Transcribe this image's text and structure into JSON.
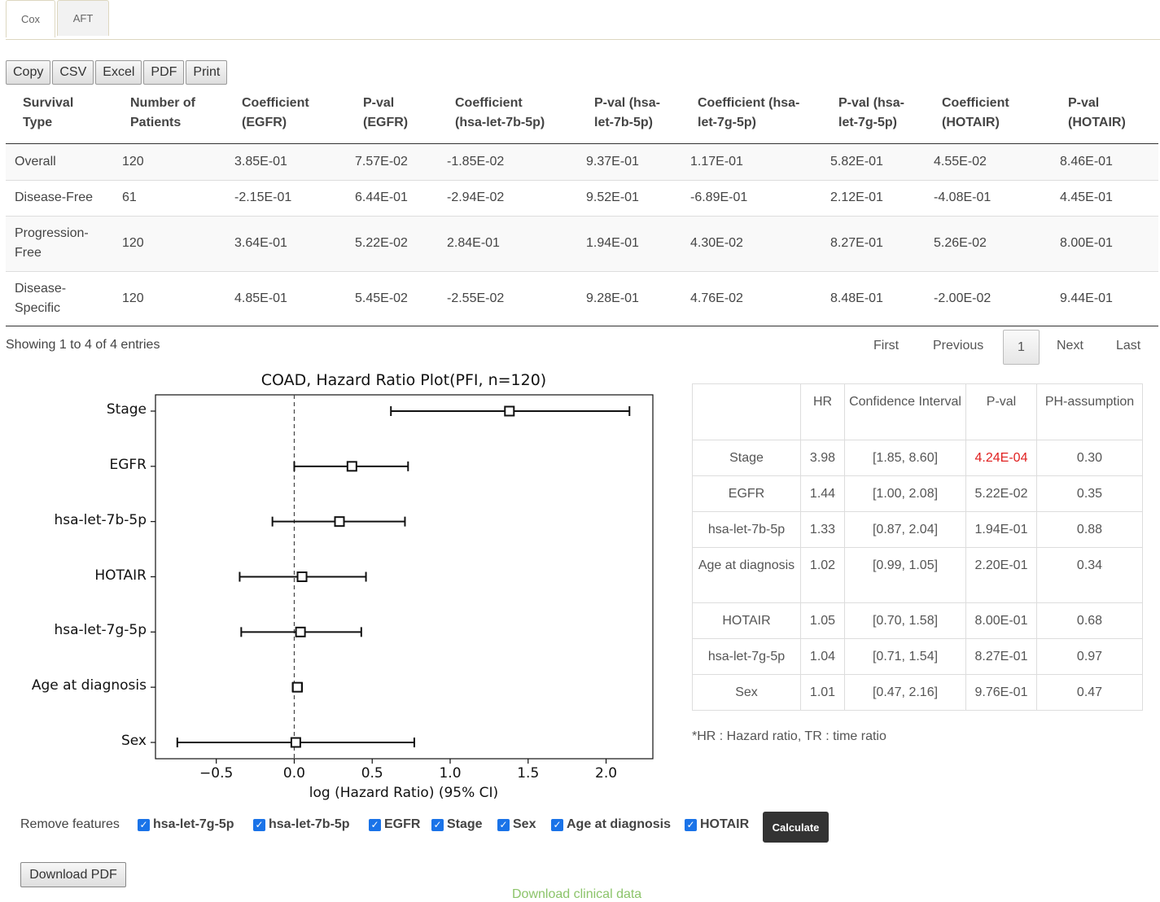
{
  "tabs": [
    {
      "label": "Cox"
    },
    {
      "label": "AFT"
    }
  ],
  "export_buttons": [
    "Copy",
    "CSV",
    "Excel",
    "PDF",
    "Print"
  ],
  "table": {
    "headers": [
      [
        "Survival",
        "Type"
      ],
      [
        "Number of",
        "Patients"
      ],
      [
        "Coefficient",
        "(EGFR)"
      ],
      [
        "P-val",
        "(EGFR)"
      ],
      [
        "Coefficient",
        "(hsa-let-7b-5p)"
      ],
      [
        "P-val (hsa-",
        "let-7b-5p)"
      ],
      [
        "Coefficient (hsa-",
        "let-7g-5p)"
      ],
      [
        "P-val (hsa-",
        "let-7g-5p)"
      ],
      [
        "Coefficient",
        "(HOTAIR)"
      ],
      [
        "P-val",
        "(HOTAIR)"
      ]
    ],
    "rows": [
      [
        [
          "Overall"
        ],
        "120",
        "3.85E-01",
        "7.57E-02",
        "-1.85E-02",
        "9.37E-01",
        "1.17E-01",
        "5.82E-01",
        "4.55E-02",
        "8.46E-01"
      ],
      [
        [
          "Disease-Free"
        ],
        "61",
        "-2.15E-01",
        "6.44E-01",
        "-2.94E-02",
        "9.52E-01",
        "-6.89E-01",
        "2.12E-01",
        "-4.08E-01",
        "4.45E-01"
      ],
      [
        [
          "Progression-",
          "Free"
        ],
        "120",
        "3.64E-01",
        "5.22E-02",
        "2.84E-01",
        "1.94E-01",
        "4.30E-02",
        "8.27E-01",
        "5.26E-02",
        "8.00E-01"
      ],
      [
        [
          "Disease-",
          "Specific"
        ],
        "120",
        "4.85E-01",
        "5.45E-02",
        "-2.55E-02",
        "9.28E-01",
        "4.76E-02",
        "8.48E-01",
        "-2.00E-02",
        "9.44E-01"
      ]
    ]
  },
  "info": "Showing 1 to 4 of 4 entries",
  "pagination": {
    "first": "First",
    "previous": "Previous",
    "current": "1",
    "next": "Next",
    "last": "Last"
  },
  "chart_data": {
    "type": "scatter",
    "title": "COAD, Hazard Ratio Plot(PFI, n=120)",
    "xlabel": "log (Hazard Ratio) (95% CI)",
    "ylabel": "",
    "xlim": [
      -0.89,
      2.3
    ],
    "xticks": [
      "−0.5",
      "0.0",
      "0.5",
      "1.0",
      "1.5",
      "2.0"
    ],
    "xtick_values": [
      -0.5,
      0.0,
      0.5,
      1.0,
      1.5,
      2.0
    ],
    "reference_line": 0.0,
    "categories": [
      "Stage",
      "EGFR",
      "hsa-let-7b-5p",
      "HOTAIR",
      "hsa-let-7g-5p",
      "Age at diagnosis",
      "Sex"
    ],
    "estimates": [
      1.38,
      0.37,
      0.29,
      0.05,
      0.04,
      0.02,
      0.01
    ],
    "ci_lower": [
      0.62,
      0.0,
      -0.14,
      -0.35,
      -0.34,
      -0.01,
      -0.75
    ],
    "ci_upper": [
      2.15,
      0.73,
      0.71,
      0.46,
      0.43,
      0.05,
      0.77
    ]
  },
  "summary_table": {
    "headers": [
      "",
      "HR",
      "Confidence Interval",
      "P-val",
      "PH-assumption"
    ],
    "rows": [
      {
        "feature": "Stage",
        "hr": "3.98",
        "ci": "[1.85, 8.60]",
        "pval": "4.24E-04",
        "ph": "0.30",
        "significant": true
      },
      {
        "feature": "EGFR",
        "hr": "1.44",
        "ci": "[1.00, 2.08]",
        "pval": "5.22E-02",
        "ph": "0.35",
        "significant": false
      },
      {
        "feature": "hsa-let-7b-5p",
        "hr": "1.33",
        "ci": "[0.87, 2.04]",
        "pval": "1.94E-01",
        "ph": "0.88",
        "significant": false
      },
      {
        "feature": "Age at diagnosis",
        "hr": "1.02",
        "ci": "[0.99, 1.05]",
        "pval": "2.20E-01",
        "ph": "0.34",
        "significant": false
      },
      {
        "feature": "HOTAIR",
        "hr": "1.05",
        "ci": "[0.70, 1.58]",
        "pval": "8.00E-01",
        "ph": "0.68",
        "significant": false
      },
      {
        "feature": "hsa-let-7g-5p",
        "hr": "1.04",
        "ci": "[0.71, 1.54]",
        "pval": "8.27E-01",
        "ph": "0.97",
        "significant": false
      },
      {
        "feature": "Sex",
        "hr": "1.01",
        "ci": "[0.47, 2.16]",
        "pval": "9.76E-01",
        "ph": "0.47",
        "significant": false
      }
    ],
    "significant_color": "#e02020"
  },
  "note": "*HR : Hazard ratio, TR : time ratio",
  "controls": {
    "remove_label": "Remove features",
    "features": [
      "hsa-let-7g-5p",
      "hsa-let-7b-5p",
      "EGFR",
      "Stage",
      "Sex",
      "Age at diagnosis",
      "HOTAIR"
    ],
    "calculate": "Calculate",
    "download_pdf": "Download PDF",
    "download_clinical": "Download clinical data"
  },
  "colors": {
    "link_green": "#8cc46a",
    "checkbox_blue": "#1a73e8"
  }
}
